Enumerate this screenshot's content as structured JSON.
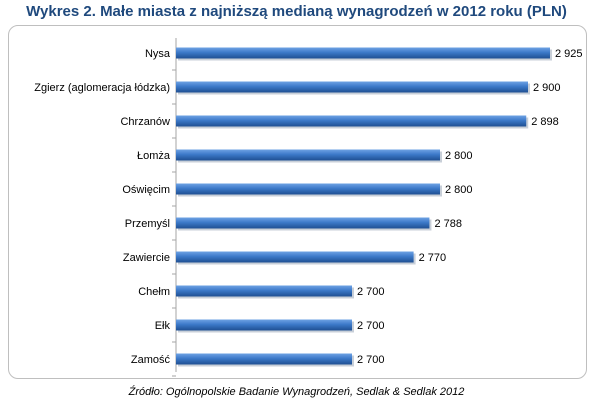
{
  "title": "Wykres 2. Małe miasta z najniższą medianą wynagrodzeń w 2012 roku (PLN)",
  "source": "Źródło: Ogólnopolskie Badanie Wynagrodzeń, Sedlak & Sedlak 2012",
  "colors": {
    "bar": "#3c79c9",
    "bar_light": "#6ea2e4",
    "bar_dark": "#1f4f92",
    "title": "#1f497d"
  },
  "chart_data": {
    "type": "bar",
    "orientation": "horizontal",
    "title": "Wykres 2. Małe miasta z najniższą medianą wynagrodzeń w 2012 roku (PLN)",
    "categories": [
      "Nysa",
      "Zgierz (aglomeracja łódzka)",
      "Chrzanów",
      "Łomża",
      "Oświęcim",
      "Przemyśl",
      "Zawiercie",
      "Chełm",
      "Ełk",
      "Zamość"
    ],
    "values": [
      2925,
      2900,
      2898,
      2800,
      2800,
      2788,
      2770,
      2700,
      2700,
      2700
    ],
    "value_labels": [
      "2 925",
      "2 900",
      "2 898",
      "2 800",
      "2 800",
      "2 788",
      "2 770",
      "2 700",
      "2 700",
      "2 700"
    ],
    "xlim": [
      2500,
      2925
    ],
    "grid": false,
    "legend": "none"
  }
}
